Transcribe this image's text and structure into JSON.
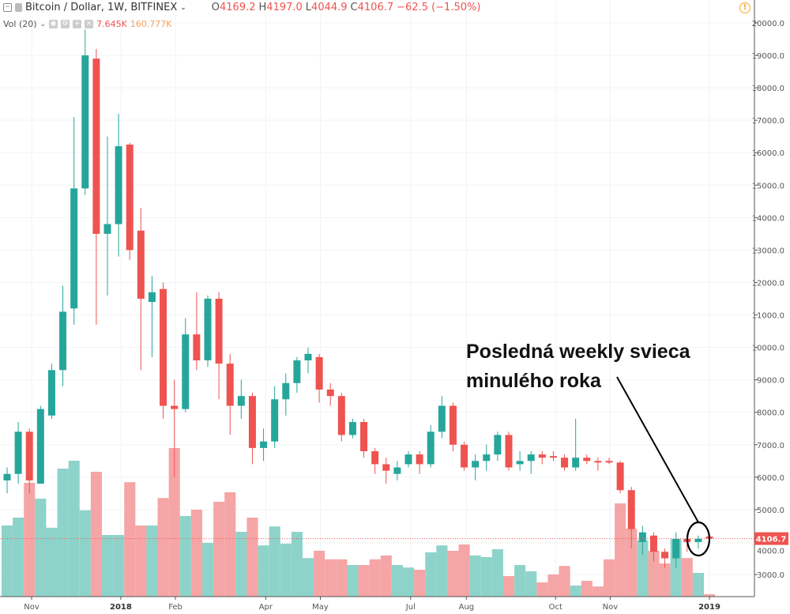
{
  "header": {
    "symbol": "Bitcoin / Dollar, 1W, BITFINEX",
    "open_label": "O",
    "open": "4169.2",
    "high_label": "H",
    "high": "4197.0",
    "low_label": "L",
    "low": "4044.9",
    "close_label": "C",
    "close": "4106.7",
    "change": "−62.5 (−1.50%)"
  },
  "volume_indicator": {
    "label": "Vol (20)",
    "value": "7.645K",
    "ma_value": "160.777K"
  },
  "annotation": {
    "line1": "Posledná weekly svieca",
    "line2": "minulého roka"
  },
  "last_price_label": "4106.7",
  "colors": {
    "up": "#26a69a",
    "down": "#ef5350",
    "vol_up": "#8ed3ca",
    "vol_down": "#f5a5a5"
  },
  "chart_data": {
    "type": "candlestick",
    "interval": "1W",
    "ylim": [
      2400,
      20400
    ],
    "y_ticks": [
      "3000.0",
      "4000.0",
      "5000.0",
      "6000.0",
      "7000.0",
      "8000.0",
      "9000.0",
      "10000.0",
      "11000.0",
      "12000.0",
      "13000.0",
      "14000.0",
      "15000.0",
      "16000.0",
      "17000.0",
      "18000.0",
      "19000.0",
      "20000.0"
    ],
    "x_labels": [
      {
        "label": "Nov",
        "index": 2.2,
        "bold": false
      },
      {
        "label": "2018",
        "index": 10.2,
        "bold": true
      },
      {
        "label": "Feb",
        "index": 15.1,
        "bold": false
      },
      {
        "label": "Apr",
        "index": 23.2,
        "bold": false
      },
      {
        "label": "May",
        "index": 28.1,
        "bold": false
      },
      {
        "label": "Jul",
        "index": 36.2,
        "bold": false
      },
      {
        "label": "Aug",
        "index": 41.2,
        "bold": false
      },
      {
        "label": "Oct",
        "index": 49.2,
        "bold": false
      },
      {
        "label": "Nov",
        "index": 54.1,
        "bold": false
      },
      {
        "label": "2019",
        "index": 63,
        "bold": true
      }
    ],
    "ohlc": [
      [
        5900,
        6300,
        5500,
        6100
      ],
      [
        6100,
        7700,
        5800,
        7400
      ],
      [
        7400,
        7500,
        5500,
        5900
      ],
      [
        5800,
        8200,
        5800,
        8100
      ],
      [
        7900,
        9500,
        7800,
        9300
      ],
      [
        9300,
        11900,
        8800,
        11100
      ],
      [
        11200,
        17100,
        10700,
        14900
      ],
      [
        14900,
        19800,
        14700,
        19000
      ],
      [
        18900,
        19200,
        10700,
        13500
      ],
      [
        13500,
        16500,
        11600,
        13800
      ],
      [
        13800,
        17200,
        12800,
        16200
      ],
      [
        16250,
        16300,
        12700,
        13000
      ],
      [
        13600,
        14300,
        9300,
        11500
      ],
      [
        11400,
        12200,
        9700,
        11700
      ],
      [
        11800,
        12000,
        7800,
        8200
      ],
      [
        8200,
        9000,
        6000,
        8100
      ],
      [
        8100,
        10900,
        8000,
        10400
      ],
      [
        10400,
        11700,
        9300,
        9600
      ],
      [
        9600,
        11600,
        9400,
        11500
      ],
      [
        11500,
        11700,
        8400,
        9500
      ],
      [
        9500,
        9800,
        7300,
        8200
      ],
      [
        8200,
        9000,
        7800,
        8500
      ],
      [
        8500,
        8600,
        6400,
        6900
      ],
      [
        6900,
        7500,
        6500,
        7100
      ],
      [
        7100,
        8800,
        6900,
        8400
      ],
      [
        8400,
        9200,
        7900,
        8900
      ],
      [
        8900,
        9700,
        8600,
        9600
      ],
      [
        9600,
        10000,
        9200,
        9800
      ],
      [
        9700,
        9800,
        8300,
        8700
      ],
      [
        8700,
        8900,
        8200,
        8500
      ],
      [
        8500,
        8600,
        7100,
        7300
      ],
      [
        7300,
        7800,
        7200,
        7700
      ],
      [
        7700,
        7800,
        6600,
        6800
      ],
      [
        6800,
        6900,
        6100,
        6400
      ],
      [
        6400,
        6600,
        5800,
        6200
      ],
      [
        6100,
        6500,
        5900,
        6300
      ],
      [
        6400,
        6800,
        6300,
        6700
      ],
      [
        6700,
        6800,
        6100,
        6400
      ],
      [
        6400,
        7600,
        6300,
        7400
      ],
      [
        7400,
        8500,
        7200,
        8200
      ],
      [
        8200,
        8300,
        6800,
        7000
      ],
      [
        7000,
        7100,
        6200,
        6300
      ],
      [
        6300,
        6700,
        5900,
        6500
      ],
      [
        6500,
        7000,
        6200,
        6700
      ],
      [
        6700,
        7400,
        6500,
        7300
      ],
      [
        7300,
        7400,
        6200,
        6300
      ],
      [
        6400,
        6800,
        6200,
        6500
      ],
      [
        6500,
        6800,
        6100,
        6700
      ],
      [
        6700,
        6800,
        6400,
        6600
      ],
      [
        6650,
        6800,
        6500,
        6600
      ],
      [
        6600,
        6700,
        6200,
        6300
      ],
      [
        6300,
        7800,
        6200,
        6600
      ],
      [
        6600,
        6700,
        6400,
        6500
      ],
      [
        6500,
        6600,
        6200,
        6450
      ],
      [
        6500,
        6600,
        6400,
        6450
      ],
      [
        6450,
        6500,
        5500,
        5600
      ],
      [
        5600,
        5700,
        3800,
        4400
      ],
      [
        4000,
        4500,
        3600,
        4300
      ],
      [
        4200,
        4300,
        3400,
        3700
      ],
      [
        3700,
        3800,
        3200,
        3500
      ],
      [
        3500,
        4300,
        3200,
        4100
      ],
      [
        4100,
        4200,
        3700,
        4000
      ],
      [
        4000,
        4200,
        3800,
        4100
      ],
      [
        4169.2,
        4197.0,
        4044.9,
        4106.7
      ]
    ],
    "volume_k": [
      225,
      250,
      360,
      310,
      218,
      405,
      430,
      273,
      395,
      195,
      195,
      362,
      225,
      225,
      312,
      470,
      255,
      275,
      170,
      300,
      330,
      205,
      250,
      162,
      222,
      168,
      205,
      122,
      145,
      118,
      118,
      100,
      100,
      118,
      130,
      100,
      92,
      85,
      140,
      162,
      145,
      165,
      130,
      125,
      150,
      65,
      100,
      80,
      45,
      70,
      97,
      35,
      50,
      32,
      118,
      295,
      215,
      178,
      145,
      105,
      182,
      122,
      75,
      7.645
    ]
  }
}
